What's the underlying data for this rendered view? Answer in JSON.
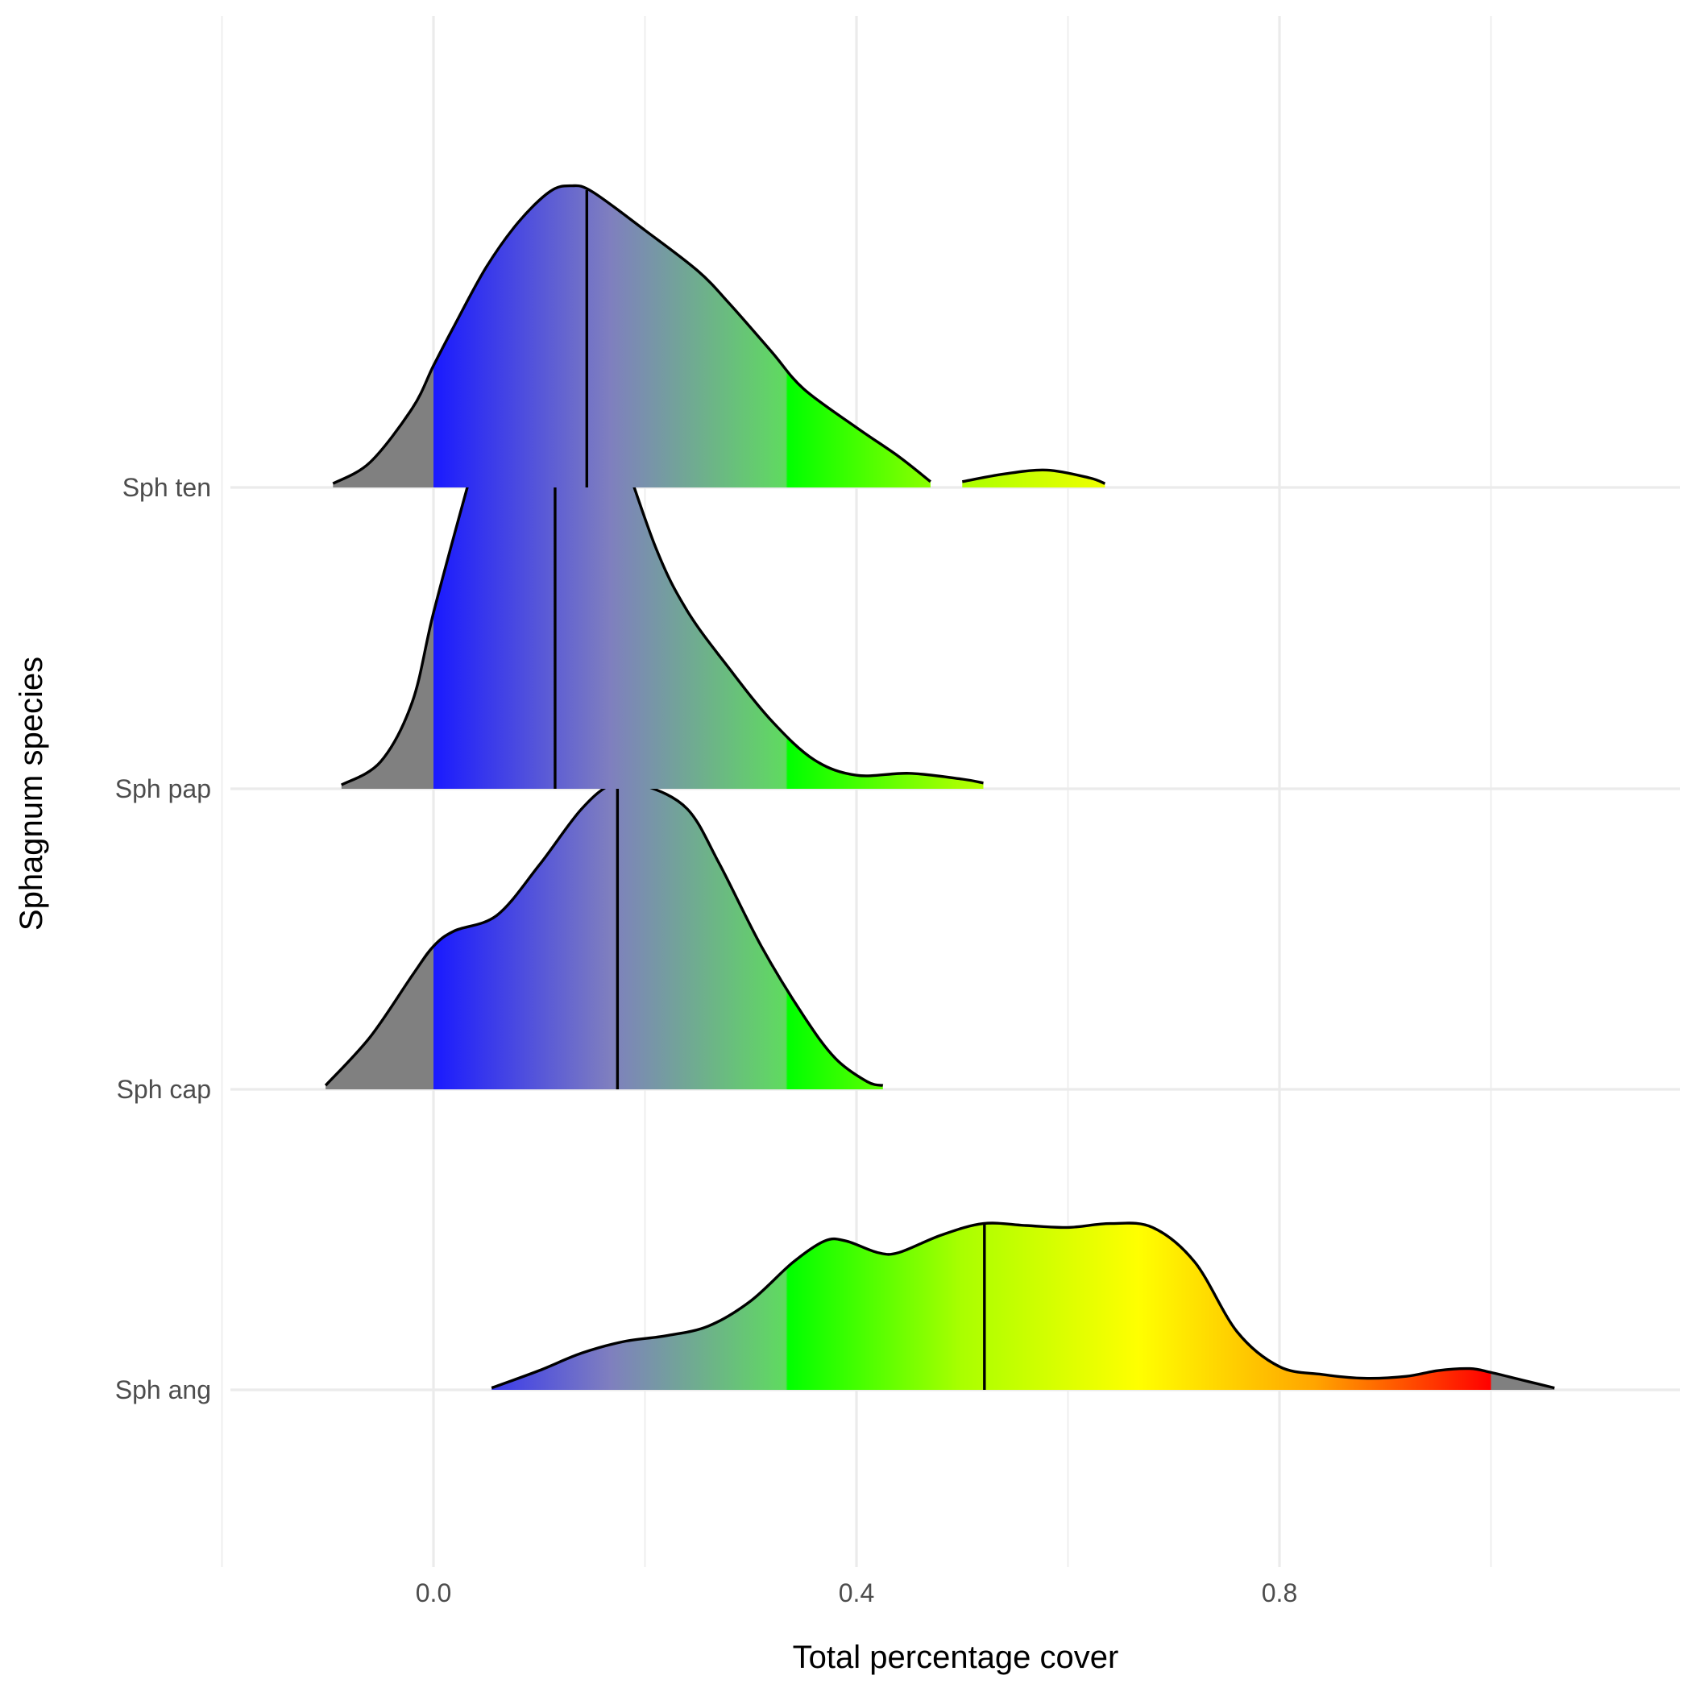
{
  "chart_data": {
    "type": "ridgeline",
    "title": "",
    "xlabel": "Total percentage cover",
    "ylabel": "Sphagnum species",
    "xlim": [
      -0.2,
      1.16
    ],
    "x_ticks": [
      0.0,
      0.4,
      0.8
    ],
    "x_tick_labels": [
      "0.0",
      "0.4",
      "0.8"
    ],
    "grid": true,
    "legend": "none",
    "fill_gradient": {
      "range": [
        0,
        1
      ],
      "out_of_range_color": "#808080",
      "stops": [
        {
          "x": 0.0,
          "color": "#1a1aff"
        },
        {
          "x": 0.167,
          "color": "#7f7fbf"
        },
        {
          "x": 0.333,
          "color": "#5fdb5f"
        },
        {
          "x": 0.335,
          "color": "#00ff00"
        },
        {
          "x": 0.5,
          "color": "#aaff00"
        },
        {
          "x": 0.667,
          "color": "#ffff00"
        },
        {
          "x": 0.833,
          "color": "#ffa500"
        },
        {
          "x": 1.0,
          "color": "#ff0000"
        }
      ]
    },
    "series": [
      {
        "name": "Sph ten",
        "median": 0.145,
        "segments": [
          {
            "x": [
              -0.095,
              -0.06,
              -0.02,
              0.0,
              0.02,
              0.05,
              0.08,
              0.11,
              0.13,
              0.15,
              0.2,
              0.25,
              0.28,
              0.32,
              0.35,
              0.4,
              0.44,
              0.47
            ],
            "y": [
              0.02,
              0.13,
              0.41,
              0.63,
              0.84,
              1.14,
              1.37,
              1.53,
              1.56,
              1.53,
              1.33,
              1.12,
              0.95,
              0.7,
              0.51,
              0.31,
              0.16,
              0.03
            ]
          },
          {
            "x": [
              0.5,
              0.54,
              0.58,
              0.62,
              0.635
            ],
            "y": [
              0.03,
              0.07,
              0.09,
              0.05,
              0.02
            ]
          }
        ]
      },
      {
        "name": "Sph pap",
        "median": 0.115,
        "segments": [
          {
            "x": [
              -0.087,
              -0.05,
              -0.02,
              0.0,
              0.03,
              0.06,
              0.08,
              0.1,
              0.115,
              0.14,
              0.17,
              0.21,
              0.24,
              0.28,
              0.32,
              0.36,
              0.4,
              0.45,
              0.5,
              0.52
            ],
            "y": [
              0.02,
              0.14,
              0.45,
              0.91,
              1.52,
              2.1,
              2.35,
              2.45,
              2.42,
              2.26,
              1.87,
              1.25,
              0.92,
              0.62,
              0.35,
              0.15,
              0.07,
              0.08,
              0.05,
              0.03
            ]
          }
        ]
      },
      {
        "name": "Sph cap",
        "median": 0.174,
        "segments": [
          {
            "x": [
              -0.102,
              -0.06,
              -0.02,
              0.0,
              0.02,
              0.06,
              0.1,
              0.14,
              0.17,
              0.2,
              0.24,
              0.27,
              0.31,
              0.35,
              0.38,
              0.41,
              0.425
            ],
            "y": [
              0.02,
              0.27,
              0.59,
              0.74,
              0.82,
              0.9,
              1.16,
              1.45,
              1.58,
              1.57,
              1.45,
              1.17,
              0.74,
              0.38,
              0.16,
              0.04,
              0.02
            ]
          }
        ]
      },
      {
        "name": "Sph ang",
        "median": 0.521,
        "segments": [
          {
            "x": [
              0.055,
              0.1,
              0.14,
              0.18,
              0.22,
              0.26,
              0.3,
              0.34,
              0.37,
              0.39,
              0.42,
              0.44,
              0.48,
              0.52,
              0.56,
              0.6,
              0.64,
              0.68,
              0.72,
              0.76,
              0.8,
              0.84,
              0.88,
              0.92,
              0.95,
              0.98,
              1.0,
              1.03,
              1.06
            ],
            "y": [
              0.01,
              0.1,
              0.19,
              0.25,
              0.28,
              0.33,
              0.46,
              0.66,
              0.77,
              0.77,
              0.71,
              0.71,
              0.8,
              0.86,
              0.85,
              0.84,
              0.86,
              0.84,
              0.66,
              0.3,
              0.12,
              0.08,
              0.06,
              0.07,
              0.1,
              0.11,
              0.09,
              0.05,
              0.01
            ]
          }
        ]
      }
    ]
  }
}
